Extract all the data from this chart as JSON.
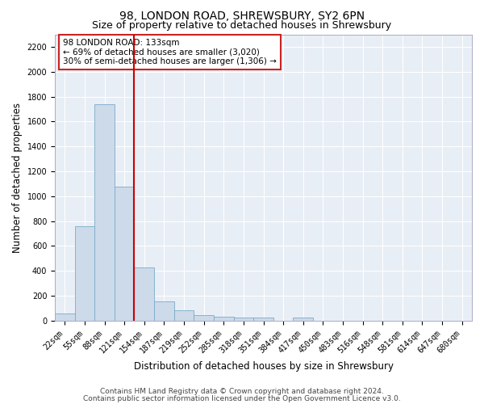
{
  "title": "98, LONDON ROAD, SHREWSBURY, SY2 6PN",
  "subtitle": "Size of property relative to detached houses in Shrewsbury",
  "xlabel": "Distribution of detached houses by size in Shrewsbury",
  "ylabel": "Number of detached properties",
  "bin_labels": [
    "22sqm",
    "55sqm",
    "88sqm",
    "121sqm",
    "154sqm",
    "187sqm",
    "219sqm",
    "252sqm",
    "285sqm",
    "318sqm",
    "351sqm",
    "384sqm",
    "417sqm",
    "450sqm",
    "483sqm",
    "516sqm",
    "548sqm",
    "581sqm",
    "614sqm",
    "647sqm",
    "680sqm"
  ],
  "bin_values": [
    60,
    760,
    1740,
    1075,
    430,
    155,
    85,
    45,
    30,
    25,
    25,
    0,
    25,
    0,
    0,
    0,
    0,
    0,
    0,
    0,
    0
  ],
  "bar_color": "#cddaea",
  "bar_edge_color": "#7baac8",
  "vline_color": "#cc0000",
  "vline_pos": 3.5,
  "annotation_text": "98 LONDON ROAD: 133sqm\n← 69% of detached houses are smaller (3,020)\n30% of semi-detached houses are larger (1,306) →",
  "annotation_box_facecolor": "#ffffff",
  "annotation_box_edgecolor": "#cc2222",
  "ylim": [
    0,
    2300
  ],
  "yticks": [
    0,
    200,
    400,
    600,
    800,
    1000,
    1200,
    1400,
    1600,
    1800,
    2000,
    2200
  ],
  "plot_bg_color": "#e8eef5",
  "fig_bg_color": "#ffffff",
  "grid_color": "#ffffff",
  "title_fontsize": 10,
  "subtitle_fontsize": 9,
  "axis_label_fontsize": 8.5,
  "tick_fontsize": 7,
  "annotation_fontsize": 7.5,
  "footer_fontsize": 6.5,
  "footer_line1": "Contains HM Land Registry data © Crown copyright and database right 2024.",
  "footer_line2": "Contains public sector information licensed under the Open Government Licence v3.0."
}
